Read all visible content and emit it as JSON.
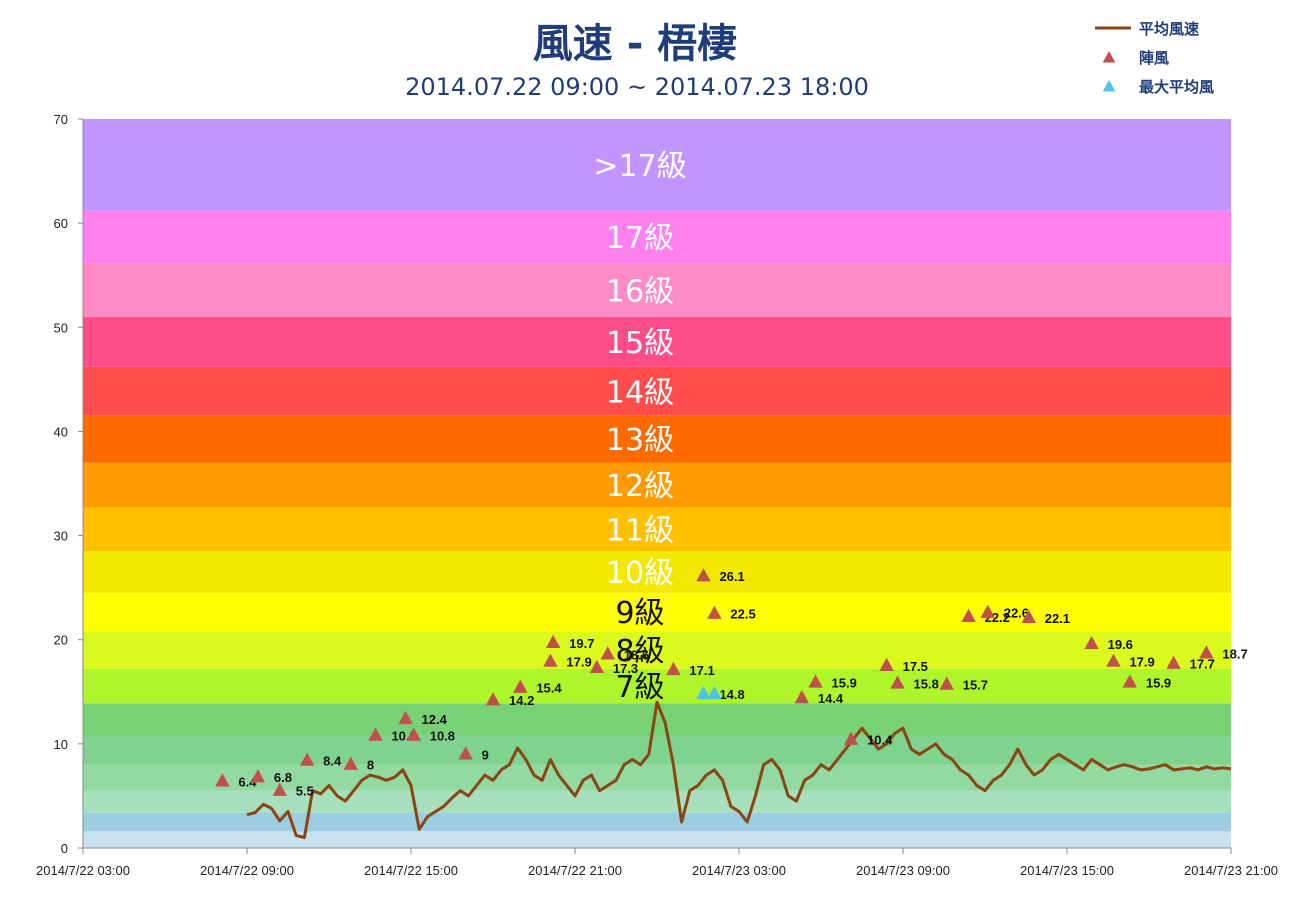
{
  "chart_data": {
    "type": "line",
    "title": "風速 - 梧棲",
    "subtitle": "2014.07.22 09:00 ~ 2014.07.23 18:00",
    "ylim": [
      0,
      70
    ],
    "y_ticks": [
      "0",
      "10",
      "20",
      "30",
      "40",
      "50",
      "60",
      "70"
    ],
    "x_tick_labels": [
      "2014/7/22 03:00",
      "2014/7/22 09:00",
      "2014/7/22 15:00",
      "2014/7/22 21:00",
      "2014/7/23 03:00",
      "2014/7/23 09:00",
      "2014/7/23 15:00",
      "2014/7/23 21:00"
    ],
    "x_range_hours": [
      0,
      42
    ],
    "legend": {
      "placement": "top-right",
      "items": [
        {
          "label": "平均風速",
          "kind": "line",
          "color": "#8b4513"
        },
        {
          "label": "陣風",
          "kind": "triangle",
          "color": "#c0504d"
        },
        {
          "label": "最大平均風",
          "kind": "triangle",
          "color": "#4dc3e6"
        }
      ]
    },
    "bands": [
      {
        "from": 0,
        "to": 1.6,
        "color": "#c6e2ef",
        "label": ""
      },
      {
        "from": 1.6,
        "to": 3.4,
        "color": "#9ccde3",
        "label": ""
      },
      {
        "from": 3.4,
        "to": 5.5,
        "color": "#a8e0be",
        "label": ""
      },
      {
        "from": 5.5,
        "to": 8.0,
        "color": "#92d9a2",
        "label": ""
      },
      {
        "from": 8.0,
        "to": 10.8,
        "color": "#7fd38e",
        "label": ""
      },
      {
        "from": 10.8,
        "to": 13.9,
        "color": "#78d175",
        "label": ""
      },
      {
        "from": 13.9,
        "to": 17.2,
        "color": "#aff52c",
        "label": "7級",
        "label_color": "#111111"
      },
      {
        "from": 17.2,
        "to": 20.8,
        "color": "#dcf91e",
        "label": "8級",
        "label_color": "#111111"
      },
      {
        "from": 20.8,
        "to": 24.5,
        "color": "#ffff00",
        "label": "9級",
        "label_color": "#111111"
      },
      {
        "from": 24.5,
        "to": 28.5,
        "color": "#f2e800",
        "label": "10級",
        "label_color": "#ffffff"
      },
      {
        "from": 28.5,
        "to": 32.7,
        "color": "#ffc000",
        "label": "11級",
        "label_color": "#ffffff"
      },
      {
        "from": 32.7,
        "to": 37.0,
        "color": "#ff9a00",
        "label": "12級",
        "label_color": "#ffffff"
      },
      {
        "from": 37.0,
        "to": 41.5,
        "color": "#ff6a00",
        "label": "13級",
        "label_color": "#ffffff"
      },
      {
        "from": 41.5,
        "to": 46.2,
        "color": "#ff4d4d",
        "label": "14級",
        "label_color": "#ffffff"
      },
      {
        "from": 46.2,
        "to": 51.0,
        "color": "#ff4d8c",
        "label": "15級",
        "label_color": "#ffffff"
      },
      {
        "from": 51.0,
        "to": 56.1,
        "color": "#ff8ac8",
        "label": "16級",
        "label_color": "#ffffff"
      },
      {
        "from": 56.1,
        "to": 61.2,
        "color": "#ff80ee",
        "label": "17級",
        "label_color": "#ffffff"
      },
      {
        "from": 61.2,
        "to": 70.0,
        "color": "#c294ff",
        "label": ">17級",
        "label_color": "#ffffff"
      }
    ],
    "series": [
      {
        "name": "平均風速",
        "type": "line",
        "color": "#8b4513",
        "x_hours": [
          6.0,
          6.3,
          6.6,
          6.9,
          7.2,
          7.5,
          7.8,
          8.1,
          8.4,
          8.7,
          9.0,
          9.3,
          9.6,
          9.9,
          10.2,
          10.5,
          10.8,
          11.1,
          11.4,
          11.7,
          12.0,
          12.3,
          12.6,
          12.9,
          13.2,
          13.5,
          13.8,
          14.1,
          14.4,
          14.7,
          15.0,
          15.3,
          15.6,
          15.9,
          16.2,
          16.5,
          16.8,
          17.1,
          17.4,
          17.7,
          18.0,
          18.3,
          18.6,
          18.9,
          19.2,
          19.5,
          19.8,
          20.1,
          20.4,
          20.7,
          21.0,
          21.3,
          21.6,
          21.9,
          22.2,
          22.5,
          22.8,
          23.1,
          23.4,
          23.7,
          24.0,
          24.3,
          24.6,
          24.9,
          25.2,
          25.5,
          25.8,
          26.1,
          26.4,
          26.7,
          27.0,
          27.3,
          27.6,
          27.9,
          28.2,
          28.5,
          28.8,
          29.1,
          29.4,
          29.7,
          30.0,
          30.3,
          30.6,
          30.9,
          31.2,
          31.5,
          31.8,
          32.1,
          32.4,
          32.7,
          33.0,
          33.3,
          33.6,
          33.9,
          34.2,
          34.5,
          34.8,
          35.1,
          35.4,
          35.7,
          36.0,
          36.3,
          36.6,
          36.9,
          37.2,
          37.5,
          37.8,
          38.1,
          38.4,
          38.7,
          39.0,
          39.3,
          39.6,
          39.9,
          40.2,
          40.5,
          40.8,
          41.1,
          41.4,
          41.7,
          42.0
        ],
        "values": [
          3.2,
          3.4,
          4.2,
          3.8,
          2.6,
          3.5,
          1.2,
          1.0,
          5.5,
          5.2,
          6.0,
          5.0,
          4.5,
          5.5,
          6.5,
          7.0,
          6.8,
          6.5,
          6.8,
          7.5,
          6.0,
          1.8,
          3.0,
          3.5,
          4.0,
          4.8,
          5.5,
          5.0,
          6.0,
          7.0,
          6.5,
          7.5,
          8.0,
          9.6,
          8.5,
          7.0,
          6.5,
          8.5,
          7.0,
          6.0,
          5.0,
          6.5,
          7.0,
          5.5,
          6.0,
          6.5,
          8.0,
          8.5,
          8.0,
          9.0,
          14.0,
          12.0,
          8.0,
          2.5,
          5.5,
          6.0,
          7.0,
          7.5,
          6.5,
          4.0,
          3.5,
          2.5,
          5.0,
          8.0,
          8.5,
          7.5,
          5.0,
          4.5,
          6.5,
          7.0,
          8.0,
          7.5,
          8.5,
          9.5,
          10.5,
          11.5,
          10.5,
          9.5,
          10.0,
          11.0,
          11.5,
          9.5,
          9.0,
          9.5,
          10.0,
          9.0,
          8.5,
          7.5,
          7.0,
          6.0,
          5.5,
          6.5,
          7.0,
          8.0,
          9.5,
          8.0,
          7.0,
          7.5,
          8.5,
          9.0,
          8.5,
          8.0,
          7.5,
          8.5,
          8.0,
          7.5,
          7.8,
          8.0,
          7.8,
          7.5,
          7.6,
          7.8,
          8.0,
          7.5,
          7.6,
          7.7,
          7.5,
          7.8,
          7.6,
          7.7,
          7.6
        ]
      },
      {
        "name": "陣風",
        "type": "scatter",
        "marker": "triangle",
        "color": "#c0504d",
        "points": [
          {
            "x": 5.1,
            "y": 6.4,
            "label": "6.4"
          },
          {
            "x": 6.4,
            "y": 6.8,
            "label": "6.8"
          },
          {
            "x": 7.2,
            "y": 5.5,
            "label": "5.5"
          },
          {
            "x": 8.2,
            "y": 8.4,
            "label": "8.4"
          },
          {
            "x": 9.8,
            "y": 8,
            "label": "8"
          },
          {
            "x": 10.7,
            "y": 10.8,
            "label": "10.8"
          },
          {
            "x": 11.8,
            "y": 12.4,
            "label": "12.4"
          },
          {
            "x": 12.1,
            "y": 10.8,
            "label": "10.8"
          },
          {
            "x": 14.0,
            "y": 9,
            "label": "9"
          },
          {
            "x": 15.0,
            "y": 14.2,
            "label": "14.2"
          },
          {
            "x": 16.0,
            "y": 15.4,
            "label": "15.4"
          },
          {
            "x": 17.1,
            "y": 17.9,
            "label": "17.9"
          },
          {
            "x": 17.2,
            "y": 19.7,
            "label": "19.7"
          },
          {
            "x": 18.8,
            "y": 17.3,
            "label": "17.3"
          },
          {
            "x": 19.2,
            "y": 18.6,
            "label": "18.6"
          },
          {
            "x": 21.6,
            "y": 17.1,
            "label": "17.1"
          },
          {
            "x": 22.7,
            "y": 26.1,
            "label": "26.1"
          },
          {
            "x": 23.1,
            "y": 22.5,
            "label": "22.5"
          },
          {
            "x": 26.3,
            "y": 14.4,
            "label": "14.4"
          },
          {
            "x": 26.8,
            "y": 15.9,
            "label": "15.9"
          },
          {
            "x": 28.1,
            "y": 10.4,
            "label": "10.4"
          },
          {
            "x": 29.4,
            "y": 17.5,
            "label": "17.5"
          },
          {
            "x": 29.8,
            "y": 15.8,
            "label": "15.8"
          },
          {
            "x": 31.6,
            "y": 15.7,
            "label": "15.7"
          },
          {
            "x": 32.4,
            "y": 22.2,
            "label": "22.2"
          },
          {
            "x": 33.1,
            "y": 22.6,
            "label": "22.6"
          },
          {
            "x": 34.6,
            "y": 22.1,
            "label": "22.1"
          },
          {
            "x": 36.9,
            "y": 19.6,
            "label": "19.6"
          },
          {
            "x": 37.7,
            "y": 17.9,
            "label": "17.9"
          },
          {
            "x": 38.3,
            "y": 15.9,
            "label": "15.9"
          },
          {
            "x": 39.9,
            "y": 17.7,
            "label": "17.7"
          },
          {
            "x": 41.1,
            "y": 18.7,
            "label": "18.7"
          }
        ]
      },
      {
        "name": "最大平均風",
        "type": "scatter",
        "marker": "triangle",
        "color": "#4dc3e6",
        "points": [
          {
            "x": 22.7,
            "y": 14.8,
            "label": "14.8"
          },
          {
            "x": 23.1,
            "y": 14.8,
            "label": ""
          }
        ]
      }
    ]
  }
}
